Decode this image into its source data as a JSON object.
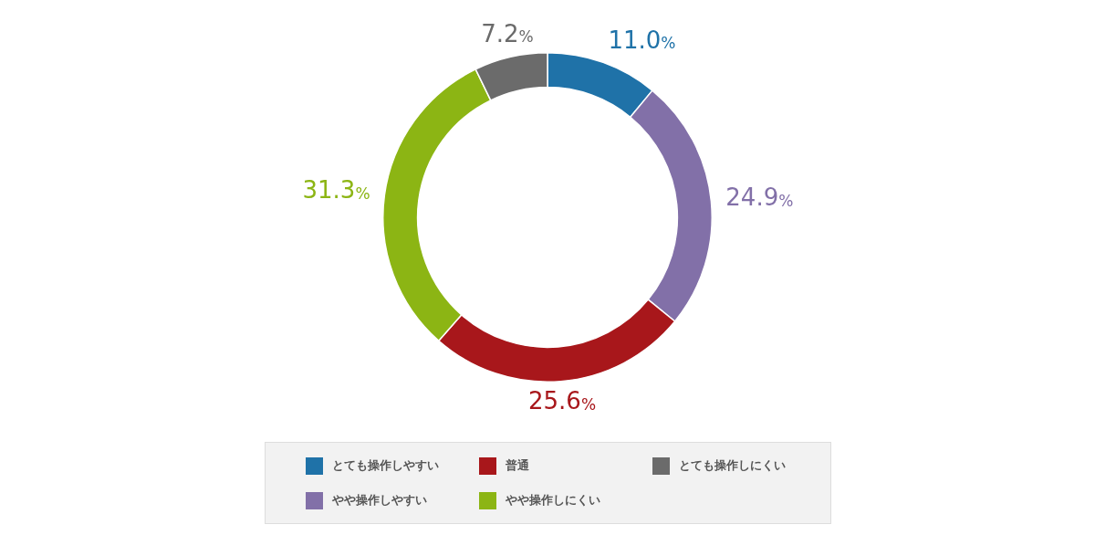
{
  "chart_data": {
    "type": "donut",
    "categories": [
      "とても操作しやすい",
      "やや操作しやすい",
      "普通",
      "やや操作しにくい",
      "とても操作しにくい"
    ],
    "values": [
      11.0,
      24.9,
      25.6,
      31.3,
      7.2
    ],
    "colors": [
      "#1f72a8",
      "#8270a8",
      "#a8171b",
      "#8cb514",
      "#6b6b6b"
    ],
    "value_labels": [
      "11.0%",
      "24.9%",
      "25.6%",
      "31.3%",
      "7.2%"
    ],
    "legend": "bottom"
  }
}
